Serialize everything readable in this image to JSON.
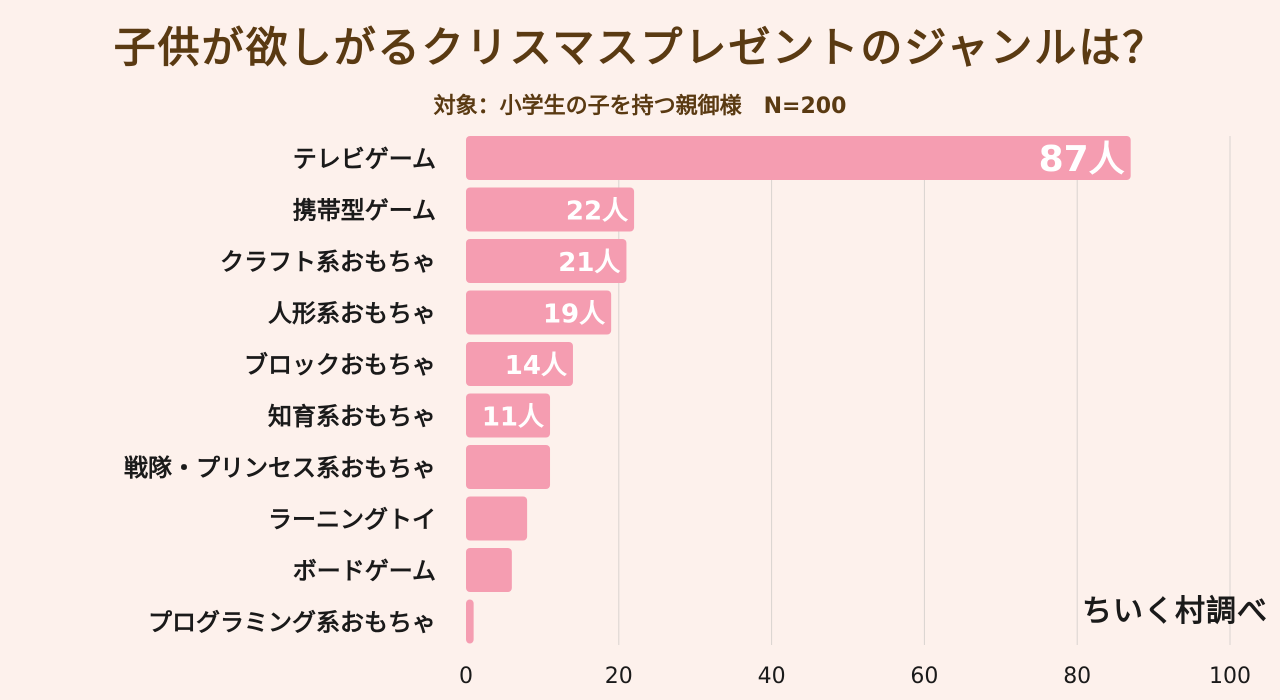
{
  "title": "子供が欲しがるクリスマスプレゼントのジャンルは？",
  "subtitle": "対象：小学生の子を持つ親御様　N=200",
  "source": "ちいく村調べ",
  "colors": {
    "background": "#fdf1ec",
    "bar": "#f59db1",
    "title": "#5a3a12",
    "grid": "#d9d3d0"
  },
  "chart_data": {
    "type": "bar",
    "orientation": "horizontal",
    "title": "子供が欲しがるクリスマスプレゼントのジャンルは？",
    "subtitle": "対象：小学生の子を持つ親御様　N=200",
    "categories": [
      "テレビゲーム",
      "携帯型ゲーム",
      "クラフト系おもちゃ",
      "人形系おもちゃ",
      "ブロックおもちゃ",
      "知育系おもちゃ",
      "戦隊・プリンセス系おもちゃ",
      "ラーニングトイ",
      "ボードゲーム",
      "プログラミング系おもちゃ"
    ],
    "values": [
      87,
      22,
      21,
      19,
      14,
      11,
      11,
      8,
      6,
      1
    ],
    "data_labels": [
      "87人",
      "22人",
      "21人",
      "19人",
      "14人",
      "11人",
      "",
      "",
      "",
      ""
    ],
    "xlim": [
      0,
      100
    ],
    "xticks": [
      0,
      20,
      40,
      60,
      80,
      100
    ],
    "grid": true,
    "legend": "none"
  }
}
